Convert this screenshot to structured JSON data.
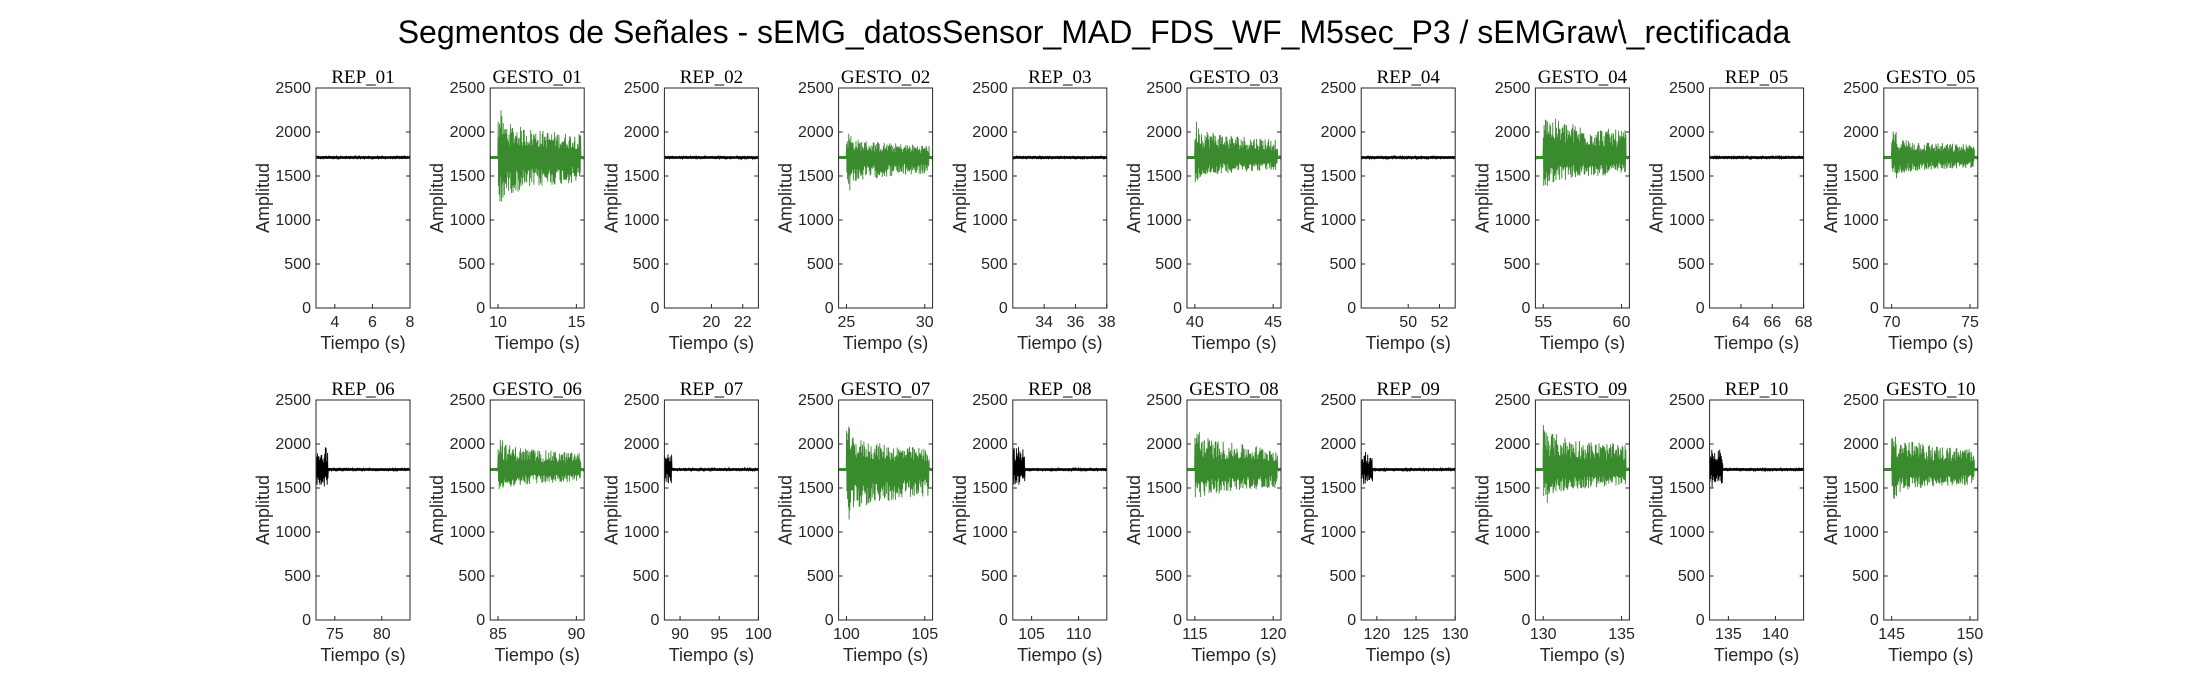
{
  "figure": {
    "title": "Segmentos de Señales - sEMG_datosSensor_MAD_FDS_WF_M5sec_P3 / sEMGraw\\_rectificada"
  },
  "chart_data": [
    {
      "type": "line",
      "title": "REP_01",
      "xlabel": "Tiempo (s)",
      "ylabel": "Amplitud",
      "xlim": [
        3,
        8
      ],
      "ylim": [
        0,
        2500
      ],
      "xticks": [
        4,
        6,
        8
      ],
      "yticks": [
        0,
        500,
        1000,
        1500,
        2000,
        2500
      ],
      "color": "#000000",
      "series": [
        {
          "values": {
            "baseline": 1710,
            "amplitude": 15,
            "burst_fraction": 0,
            "burst_max": 1740,
            "burst_min": 1690
          }
        }
      ]
    },
    {
      "type": "line",
      "title": "GESTO_01",
      "xlabel": "Tiempo (s)",
      "ylabel": "Amplitud",
      "xlim": [
        9.5,
        15.5
      ],
      "ylim": [
        0,
        2500
      ],
      "xticks": [
        10,
        15
      ],
      "yticks": [
        0,
        500,
        1000,
        1500,
        2000,
        2500
      ],
      "color": "#3a8a2e",
      "series": [
        {
          "values": {
            "baseline": 1710,
            "amplitude": 150,
            "peak_max": 2250,
            "peak_min": 1130,
            "onset": 10
          }
        }
      ]
    },
    {
      "type": "line",
      "title": "REP_02",
      "xlabel": "Tiempo (s)",
      "ylabel": "Amplitud",
      "xlim": [
        17,
        23
      ],
      "ylim": [
        0,
        2500
      ],
      "xticks": [
        20,
        22
      ],
      "yticks": [
        0,
        500,
        1000,
        1500,
        2000,
        2500
      ],
      "color": "#000000",
      "series": [
        {
          "values": {
            "baseline": 1710,
            "amplitude": 15,
            "burst_fraction": 0,
            "burst_max": 1740,
            "burst_min": 1690
          }
        }
      ]
    },
    {
      "type": "line",
      "title": "GESTO_02",
      "xlabel": "Tiempo (s)",
      "ylabel": "Amplitud",
      "xlim": [
        24.5,
        30.5
      ],
      "ylim": [
        0,
        2500
      ],
      "xticks": [
        25,
        30
      ],
      "yticks": [
        0,
        500,
        1000,
        1500,
        2000,
        2500
      ],
      "color": "#3a8a2e",
      "series": [
        {
          "values": {
            "baseline": 1710,
            "amplitude": 90,
            "peak_max": 2000,
            "peak_min": 1330,
            "onset": 25
          }
        }
      ]
    },
    {
      "type": "line",
      "title": "REP_03",
      "xlabel": "Tiempo (s)",
      "ylabel": "Amplitud",
      "xlim": [
        32,
        38
      ],
      "ylim": [
        0,
        2500
      ],
      "xticks": [
        34,
        36,
        38
      ],
      "yticks": [
        0,
        500,
        1000,
        1500,
        2000,
        2500
      ],
      "color": "#000000",
      "series": [
        {
          "values": {
            "baseline": 1710,
            "amplitude": 15,
            "burst_fraction": 0,
            "burst_max": 1740,
            "burst_min": 1690
          }
        }
      ]
    },
    {
      "type": "line",
      "title": "GESTO_03",
      "xlabel": "Tiempo (s)",
      "ylabel": "Amplitud",
      "xlim": [
        39.5,
        45.5
      ],
      "ylim": [
        0,
        2500
      ],
      "xticks": [
        40,
        45
      ],
      "yticks": [
        0,
        500,
        1000,
        1500,
        2000,
        2500
      ],
      "color": "#3a8a2e",
      "series": [
        {
          "values": {
            "baseline": 1710,
            "amplitude": 110,
            "peak_max": 2150,
            "peak_min": 1420,
            "onset": 40
          }
        }
      ]
    },
    {
      "type": "line",
      "title": "REP_04",
      "xlabel": "Tiempo (s)",
      "ylabel": "Amplitud",
      "xlim": [
        47,
        53
      ],
      "ylim": [
        0,
        2500
      ],
      "xticks": [
        50,
        52
      ],
      "yticks": [
        0,
        500,
        1000,
        1500,
        2000,
        2500
      ],
      "color": "#000000",
      "series": [
        {
          "values": {
            "baseline": 1710,
            "amplitude": 15,
            "burst_fraction": 0,
            "burst_max": 1740,
            "burst_min": 1690
          }
        }
      ]
    },
    {
      "type": "line",
      "title": "GESTO_04",
      "xlabel": "Tiempo (s)",
      "ylabel": "Amplitud",
      "xlim": [
        54.5,
        60.5
      ],
      "ylim": [
        0,
        2500
      ],
      "xticks": [
        55,
        60
      ],
      "yticks": [
        0,
        500,
        1000,
        1500,
        2000,
        2500
      ],
      "color": "#3a8a2e",
      "series": [
        {
          "values": {
            "baseline": 1710,
            "amplitude": 130,
            "peak_max": 2330,
            "peak_min": 1320,
            "onset": 55
          }
        }
      ]
    },
    {
      "type": "line",
      "title": "REP_05",
      "xlabel": "Tiempo (s)",
      "ylabel": "Amplitud",
      "xlim": [
        62,
        68
      ],
      "ylim": [
        0,
        2500
      ],
      "xticks": [
        64,
        66,
        68
      ],
      "yticks": [
        0,
        500,
        1000,
        1500,
        2000,
        2500
      ],
      "color": "#000000",
      "series": [
        {
          "values": {
            "baseline": 1710,
            "amplitude": 15,
            "burst_fraction": 0,
            "burst_max": 1760,
            "burst_min": 1690
          }
        }
      ]
    },
    {
      "type": "line",
      "title": "GESTO_05",
      "xlabel": "Tiempo (s)",
      "ylabel": "Amplitud",
      "xlim": [
        69.5,
        75.5
      ],
      "ylim": [
        0,
        2500
      ],
      "xticks": [
        70,
        75
      ],
      "yticks": [
        0,
        500,
        1000,
        1500,
        2000,
        2500
      ],
      "color": "#3a8a2e",
      "series": [
        {
          "values": {
            "baseline": 1710,
            "amplitude": 100,
            "peak_max": 2010,
            "peak_min": 1470,
            "onset": 70
          }
        }
      ]
    },
    {
      "type": "line",
      "title": "REP_06",
      "xlabel": "Tiempo (s)",
      "ylabel": "Amplitud",
      "xlim": [
        73,
        83
      ],
      "ylim": [
        0,
        2500
      ],
      "xticks": [
        75,
        80
      ],
      "yticks": [
        0,
        500,
        1000,
        1500,
        2000,
        2500
      ],
      "color": "#000000",
      "series": [
        {
          "values": {
            "baseline": 1710,
            "amplitude": 15,
            "burst_fraction": 0.13,
            "burst_max": 1970,
            "burst_min": 1500
          }
        }
      ]
    },
    {
      "type": "line",
      "title": "GESTO_06",
      "xlabel": "Tiempo (s)",
      "ylabel": "Amplitud",
      "xlim": [
        84.5,
        90.5
      ],
      "ylim": [
        0,
        2500
      ],
      "xticks": [
        85,
        90
      ],
      "yticks": [
        0,
        500,
        1000,
        1500,
        2000,
        2500
      ],
      "color": "#3a8a2e",
      "series": [
        {
          "values": {
            "baseline": 1710,
            "amplitude": 110,
            "peak_max": 2100,
            "peak_min": 1430,
            "onset": 85
          }
        }
      ]
    },
    {
      "type": "line",
      "title": "REP_07",
      "xlabel": "Tiempo (s)",
      "ylabel": "Amplitud",
      "xlim": [
        88,
        100
      ],
      "ylim": [
        0,
        2500
      ],
      "xticks": [
        90,
        95,
        100
      ],
      "yticks": [
        0,
        500,
        1000,
        1500,
        2000,
        2500
      ],
      "color": "#000000",
      "series": [
        {
          "values": {
            "baseline": 1710,
            "amplitude": 15,
            "burst_fraction": 0.08,
            "burst_max": 1930,
            "burst_min": 1550
          }
        }
      ]
    },
    {
      "type": "line",
      "title": "GESTO_07",
      "xlabel": "Tiempo (s)",
      "ylabel": "Amplitud",
      "xlim": [
        99.5,
        105.5
      ],
      "ylim": [
        0,
        2500
      ],
      "xticks": [
        100,
        105
      ],
      "yticks": [
        0,
        500,
        1000,
        1500,
        2000,
        2500
      ],
      "color": "#3a8a2e",
      "series": [
        {
          "values": {
            "baseline": 1710,
            "amplitude": 160,
            "peak_max": 2200,
            "peak_min": 1090,
            "onset": 100
          }
        }
      ]
    },
    {
      "type": "line",
      "title": "REP_08",
      "xlabel": "Tiempo (s)",
      "ylabel": "Amplitud",
      "xlim": [
        103,
        113
      ],
      "ylim": [
        0,
        2500
      ],
      "xticks": [
        105,
        110
      ],
      "yticks": [
        0,
        500,
        1000,
        1500,
        2000,
        2500
      ],
      "color": "#000000",
      "series": [
        {
          "values": {
            "baseline": 1710,
            "amplitude": 15,
            "burst_fraction": 0.13,
            "burst_max": 1970,
            "burst_min": 1530
          }
        }
      ]
    },
    {
      "type": "line",
      "title": "GESTO_08",
      "xlabel": "Tiempo (s)",
      "ylabel": "Amplitud",
      "xlim": [
        114.5,
        120.5
      ],
      "ylim": [
        0,
        2500
      ],
      "xticks": [
        115,
        120
      ],
      "yticks": [
        0,
        500,
        1000,
        1500,
        2000,
        2500
      ],
      "color": "#3a8a2e",
      "series": [
        {
          "values": {
            "baseline": 1710,
            "amplitude": 120,
            "peak_max": 2220,
            "peak_min": 1290,
            "onset": 115
          }
        }
      ]
    },
    {
      "type": "line",
      "title": "REP_09",
      "xlabel": "Tiempo (s)",
      "ylabel": "Amplitud",
      "xlim": [
        118,
        130
      ],
      "ylim": [
        0,
        2500
      ],
      "xticks": [
        120,
        125,
        130
      ],
      "yticks": [
        0,
        500,
        1000,
        1500,
        2000,
        2500
      ],
      "color": "#000000",
      "series": [
        {
          "values": {
            "baseline": 1710,
            "amplitude": 15,
            "burst_fraction": 0.12,
            "burst_max": 1910,
            "burst_min": 1530
          }
        }
      ]
    },
    {
      "type": "line",
      "title": "GESTO_09",
      "xlabel": "Tiempo (s)",
      "ylabel": "Amplitud",
      "xlim": [
        129.5,
        135.5
      ],
      "ylim": [
        0,
        2500
      ],
      "xticks": [
        130,
        135
      ],
      "yticks": [
        0,
        500,
        1000,
        1500,
        2000,
        2500
      ],
      "color": "#3a8a2e",
      "series": [
        {
          "values": {
            "baseline": 1710,
            "amplitude": 150,
            "peak_max": 2280,
            "peak_min": 1330,
            "onset": 130
          }
        }
      ]
    },
    {
      "type": "line",
      "title": "REP_10",
      "xlabel": "Tiempo (s)",
      "ylabel": "Amplitud",
      "xlim": [
        133,
        143
      ],
      "ylim": [
        0,
        2500
      ],
      "xticks": [
        135,
        140
      ],
      "yticks": [
        0,
        500,
        1000,
        1500,
        2000,
        2500
      ],
      "color": "#000000",
      "series": [
        {
          "values": {
            "baseline": 1710,
            "amplitude": 15,
            "burst_fraction": 0.14,
            "burst_max": 1940,
            "burst_min": 1500
          }
        }
      ]
    },
    {
      "type": "line",
      "title": "GESTO_10",
      "xlabel": "Tiempo (s)",
      "ylabel": "Amplitud",
      "xlim": [
        144.5,
        150.5
      ],
      "ylim": [
        0,
        2500
      ],
      "xticks": [
        145,
        150
      ],
      "yticks": [
        0,
        500,
        1000,
        1500,
        2000,
        2500
      ],
      "color": "#3a8a2e",
      "series": [
        {
          "values": {
            "baseline": 1710,
            "amplitude": 130,
            "peak_max": 2190,
            "peak_min": 1360,
            "onset": 145
          }
        }
      ]
    }
  ]
}
